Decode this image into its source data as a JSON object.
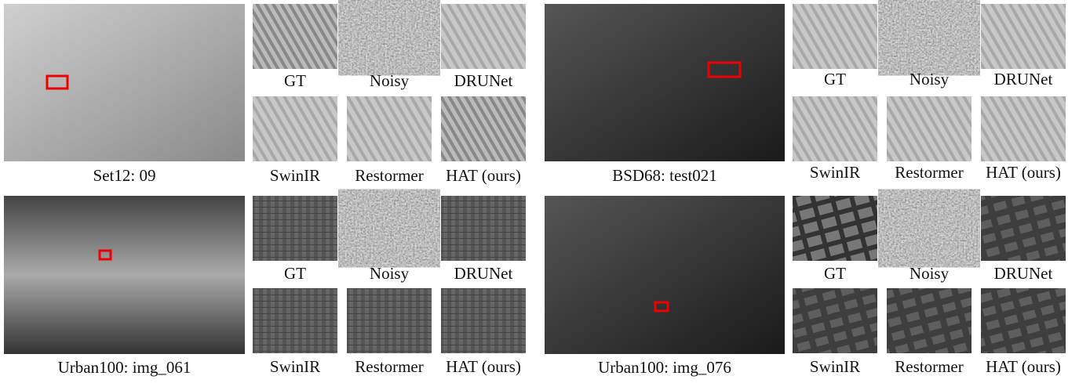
{
  "panels": [
    {
      "caption": "Set12: 09",
      "crops": [
        "GT",
        "Noisy",
        "DRUNet",
        "SwinIR",
        "Restormer",
        "HAT (ours)"
      ]
    },
    {
      "caption": "BSD68: test021",
      "crops": [
        "GT",
        "Noisy",
        "DRUNet",
        "SwinIR",
        "Restormer",
        "HAT (ours)"
      ]
    },
    {
      "caption": "Urban100: img_061",
      "crops": [
        "GT",
        "Noisy",
        "DRUNet",
        "SwinIR",
        "Restormer",
        "HAT (ours)"
      ]
    },
    {
      "caption": "Urban100: img_076",
      "crops": [
        "GT",
        "Noisy",
        "DRUNet",
        "SwinIR",
        "Restormer",
        "HAT (ours)"
      ]
    }
  ]
}
